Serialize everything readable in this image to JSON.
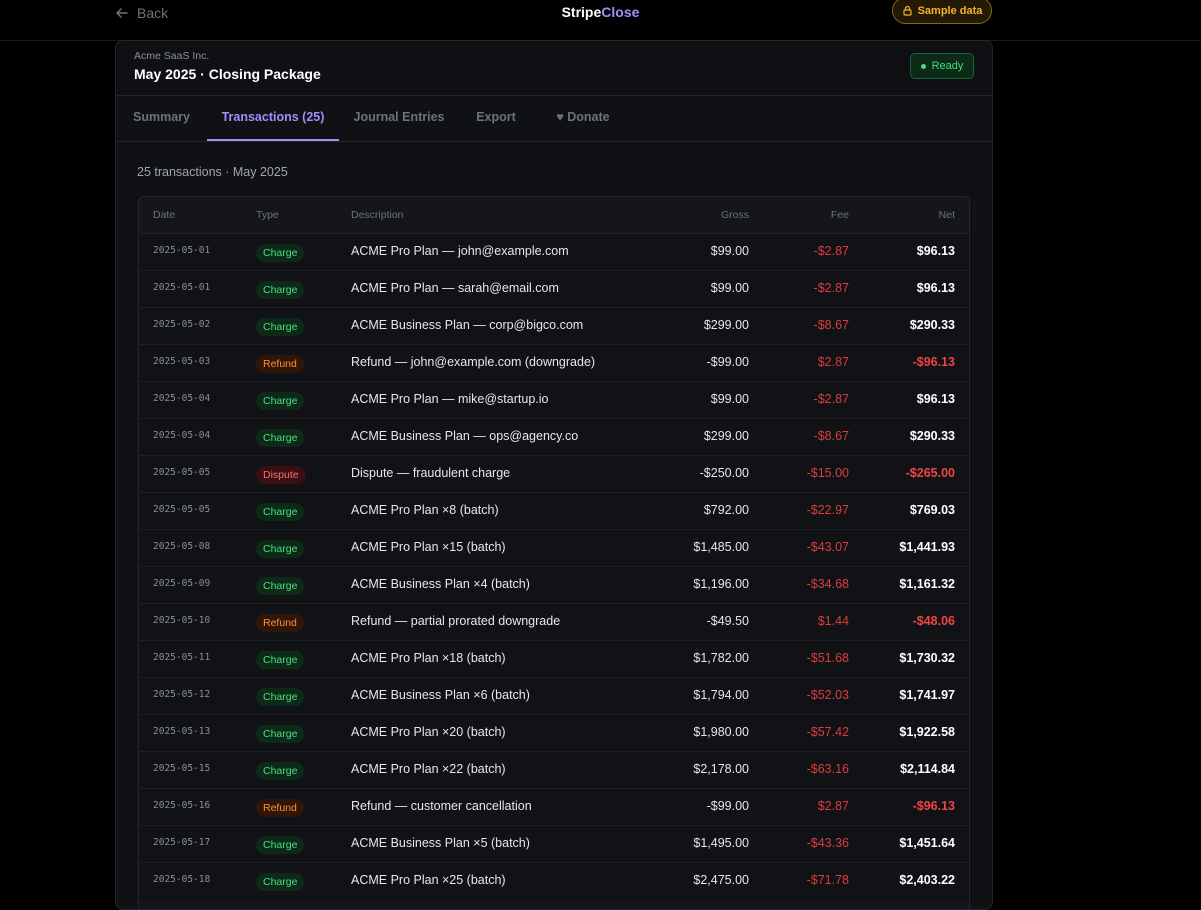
{
  "nav": {
    "back_label": "Back",
    "brand_primary": "Stripe",
    "brand_accent": "Close",
    "sample_label": "Sample data"
  },
  "header": {
    "company": "Acme SaaS Inc.",
    "title": "May 2025 · Closing Package",
    "status": "Ready"
  },
  "tabs": [
    {
      "label": "Summary",
      "active": false
    },
    {
      "label": "Transactions (25)",
      "active": true
    },
    {
      "label": "Journal Entries",
      "active": false
    },
    {
      "label": "Export",
      "active": false
    },
    {
      "label": "♥ Donate",
      "active": false
    }
  ],
  "count_line": "25 transactions · May 2025",
  "table": {
    "columns": [
      "Date",
      "Type",
      "Description",
      "Gross",
      "Fee",
      "Net"
    ],
    "rows": [
      {
        "date": "2025-05-01",
        "type": "Charge",
        "description": "ACME Pro Plan — john@example.com",
        "gross": "$99.00",
        "fee": "-$2.87",
        "net": "$96.13"
      },
      {
        "date": "2025-05-01",
        "type": "Charge",
        "description": "ACME Pro Plan — sarah@email.com",
        "gross": "$99.00",
        "fee": "-$2.87",
        "net": "$96.13"
      },
      {
        "date": "2025-05-02",
        "type": "Charge",
        "description": "ACME Business Plan — corp@bigco.com",
        "gross": "$299.00",
        "fee": "-$8.67",
        "net": "$290.33"
      },
      {
        "date": "2025-05-03",
        "type": "Refund",
        "description": "Refund — john@example.com (downgrade)",
        "gross": "-$99.00",
        "fee": "$2.87",
        "net": "-$96.13"
      },
      {
        "date": "2025-05-04",
        "type": "Charge",
        "description": "ACME Pro Plan — mike@startup.io",
        "gross": "$99.00",
        "fee": "-$2.87",
        "net": "$96.13"
      },
      {
        "date": "2025-05-04",
        "type": "Charge",
        "description": "ACME Business Plan — ops@agency.co",
        "gross": "$299.00",
        "fee": "-$8.67",
        "net": "$290.33"
      },
      {
        "date": "2025-05-05",
        "type": "Dispute",
        "description": "Dispute — fraudulent charge",
        "gross": "-$250.00",
        "fee": "-$15.00",
        "net": "-$265.00"
      },
      {
        "date": "2025-05-05",
        "type": "Charge",
        "description": "ACME Pro Plan ×8 (batch)",
        "gross": "$792.00",
        "fee": "-$22.97",
        "net": "$769.03"
      },
      {
        "date": "2025-05-08",
        "type": "Charge",
        "description": "ACME Pro Plan ×15 (batch)",
        "gross": "$1,485.00",
        "fee": "-$43.07",
        "net": "$1,441.93"
      },
      {
        "date": "2025-05-09",
        "type": "Charge",
        "description": "ACME Business Plan ×4 (batch)",
        "gross": "$1,196.00",
        "fee": "-$34.68",
        "net": "$1,161.32"
      },
      {
        "date": "2025-05-10",
        "type": "Refund",
        "description": "Refund — partial prorated downgrade",
        "gross": "-$49.50",
        "fee": "$1.44",
        "net": "-$48.06"
      },
      {
        "date": "2025-05-11",
        "type": "Charge",
        "description": "ACME Pro Plan ×18 (batch)",
        "gross": "$1,782.00",
        "fee": "-$51.68",
        "net": "$1,730.32"
      },
      {
        "date": "2025-05-12",
        "type": "Charge",
        "description": "ACME Business Plan ×6 (batch)",
        "gross": "$1,794.00",
        "fee": "-$52.03",
        "net": "$1,741.97"
      },
      {
        "date": "2025-05-13",
        "type": "Charge",
        "description": "ACME Pro Plan ×20 (batch)",
        "gross": "$1,980.00",
        "fee": "-$57.42",
        "net": "$1,922.58"
      },
      {
        "date": "2025-05-15",
        "type": "Charge",
        "description": "ACME Pro Plan ×22 (batch)",
        "gross": "$2,178.00",
        "fee": "-$63.16",
        "net": "$2,114.84"
      },
      {
        "date": "2025-05-16",
        "type": "Refund",
        "description": "Refund — customer cancellation",
        "gross": "-$99.00",
        "fee": "$2.87",
        "net": "-$96.13"
      },
      {
        "date": "2025-05-17",
        "type": "Charge",
        "description": "ACME Business Plan ×5 (batch)",
        "gross": "$1,495.00",
        "fee": "-$43.36",
        "net": "$1,451.64"
      },
      {
        "date": "2025-05-18",
        "type": "Charge",
        "description": "ACME Pro Plan ×25 (batch)",
        "gross": "$2,475.00",
        "fee": "-$71.78",
        "net": "$2,403.22"
      }
    ]
  },
  "colors": {
    "accent": "#a78bfa",
    "charge": "#4ade80",
    "refund": "#fb923c",
    "dispute": "#f87171",
    "negative": "#f04444"
  }
}
